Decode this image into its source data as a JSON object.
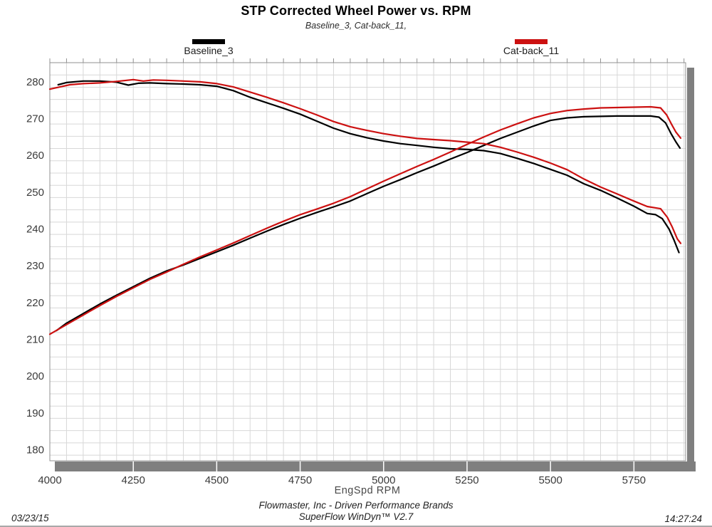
{
  "header": {
    "title": "STP Corrected Wheel Power vs. RPM",
    "subtitle": "Baseline_3, Cat-back_11,"
  },
  "legend": [
    {
      "label": "Baseline_3",
      "color": "#000000"
    },
    {
      "label": "Cat-back_11",
      "color": "#cc1111"
    }
  ],
  "footer": {
    "company_line": "Flowmaster, Inc - Driven Performance Brands",
    "software_line": "SuperFlow WinDyn™ V2.7",
    "date": "03/23/15",
    "time": "14:27:24"
  },
  "chart_data": {
    "type": "line",
    "title": "STP Corrected Wheel Power vs. RPM",
    "subtitle": "Baseline_3, Cat-back_11,",
    "xlabel": "EngSpd  RPM",
    "x_tick_labels": [
      4000,
      4250,
      4500,
      4750,
      5000,
      5250,
      5500,
      5750
    ],
    "y_tick_labels": [
      280,
      270,
      260,
      250,
      240,
      230,
      220,
      210,
      200,
      190,
      180
    ],
    "x_range": [
      4000,
      5905
    ],
    "ylim": [
      177.0,
      285.2
    ],
    "minor_x_step": 50,
    "minor_y_step": 3.3333,
    "grid": "minor-on",
    "legend_position": "top",
    "colors": {
      "grid": "#d8d8d8",
      "border": "#909090",
      "axis_bar": "#7f7f7f",
      "tick_text": "#3a3a3a"
    },
    "series": [
      {
        "name": "Baseline_3",
        "color": "#000000",
        "lines": {
          "upper": [
            [
              4025,
              279.2
            ],
            [
              4050,
              279.8
            ],
            [
              4100,
              280.2
            ],
            [
              4150,
              280.2
            ],
            [
              4200,
              279.9
            ],
            [
              4235,
              279.1
            ],
            [
              4265,
              279.6
            ],
            [
              4300,
              279.7
            ],
            [
              4350,
              279.5
            ],
            [
              4400,
              279.4
            ],
            [
              4450,
              279.2
            ],
            [
              4500,
              278.8
            ],
            [
              4550,
              277.6
            ],
            [
              4600,
              275.8
            ],
            [
              4650,
              274.3
            ],
            [
              4700,
              272.8
            ],
            [
              4750,
              271.2
            ],
            [
              4800,
              269.3
            ],
            [
              4850,
              267.4
            ],
            [
              4900,
              265.9
            ],
            [
              4950,
              264.8
            ],
            [
              5000,
              263.9
            ],
            [
              5050,
              263.2
            ],
            [
              5100,
              262.7
            ],
            [
              5150,
              262.2
            ],
            [
              5200,
              261.8
            ],
            [
              5250,
              261.6
            ],
            [
              5300,
              261.3
            ],
            [
              5350,
              260.5
            ],
            [
              5400,
              259.2
            ],
            [
              5450,
              257.8
            ],
            [
              5500,
              256.2
            ],
            [
              5550,
              254.6
            ],
            [
              5600,
              252.3
            ],
            [
              5650,
              250.5
            ],
            [
              5700,
              248.4
            ],
            [
              5750,
              246.2
            ],
            [
              5790,
              244.2
            ],
            [
              5815,
              243.9
            ],
            [
              5835,
              242.8
            ],
            [
              5855,
              240.0
            ],
            [
              5870,
              237.0
            ],
            [
              5885,
              233.6
            ]
          ],
          "power": [
            [
              4020,
              212.4
            ],
            [
              4050,
              214.4
            ],
            [
              4100,
              217.0
            ],
            [
              4150,
              219.6
            ],
            [
              4200,
              222.0
            ],
            [
              4250,
              224.3
            ],
            [
              4300,
              226.6
            ],
            [
              4350,
              228.6
            ],
            [
              4400,
              230.2
            ],
            [
              4450,
              232.0
            ],
            [
              4500,
              233.8
            ],
            [
              4550,
              235.6
            ],
            [
              4600,
              237.5
            ],
            [
              4650,
              239.4
            ],
            [
              4700,
              241.2
            ],
            [
              4750,
              242.9
            ],
            [
              4800,
              244.5
            ],
            [
              4850,
              246.0
            ],
            [
              4900,
              247.6
            ],
            [
              4950,
              249.6
            ],
            [
              5000,
              251.6
            ],
            [
              5050,
              253.4
            ],
            [
              5100,
              255.3
            ],
            [
              5150,
              257.1
            ],
            [
              5200,
              259.0
            ],
            [
              5250,
              260.8
            ],
            [
              5300,
              262.7
            ],
            [
              5350,
              264.6
            ],
            [
              5400,
              266.3
            ],
            [
              5450,
              268.0
            ],
            [
              5500,
              269.5
            ],
            [
              5550,
              270.2
            ],
            [
              5600,
              270.5
            ],
            [
              5650,
              270.6
            ],
            [
              5700,
              270.7
            ],
            [
              5750,
              270.7
            ],
            [
              5800,
              270.7
            ],
            [
              5825,
              270.4
            ],
            [
              5845,
              268.8
            ],
            [
              5862,
              265.8
            ],
            [
              5875,
              263.8
            ],
            [
              5888,
              262.0
            ]
          ]
        }
      },
      {
        "name": "Cat-back_11",
        "color": "#cc1111",
        "lines": {
          "upper": [
            [
              4000,
              278.0
            ],
            [
              4030,
              278.6
            ],
            [
              4060,
              279.2
            ],
            [
              4100,
              279.5
            ],
            [
              4150,
              279.7
            ],
            [
              4200,
              280.1
            ],
            [
              4250,
              280.6
            ],
            [
              4280,
              280.2
            ],
            [
              4310,
              280.5
            ],
            [
              4350,
              280.4
            ],
            [
              4400,
              280.2
            ],
            [
              4450,
              280.0
            ],
            [
              4500,
              279.5
            ],
            [
              4550,
              278.6
            ],
            [
              4600,
              277.2
            ],
            [
              4650,
              275.8
            ],
            [
              4700,
              274.3
            ],
            [
              4750,
              272.7
            ],
            [
              4800,
              271.0
            ],
            [
              4850,
              269.2
            ],
            [
              4900,
              267.8
            ],
            [
              4950,
              266.8
            ],
            [
              5000,
              265.9
            ],
            [
              5050,
              265.2
            ],
            [
              5100,
              264.6
            ],
            [
              5150,
              264.3
            ],
            [
              5200,
              264.0
            ],
            [
              5250,
              263.6
            ],
            [
              5300,
              263.2
            ],
            [
              5350,
              262.2
            ],
            [
              5400,
              260.9
            ],
            [
              5450,
              259.5
            ],
            [
              5500,
              257.9
            ],
            [
              5550,
              256.1
            ],
            [
              5600,
              253.6
            ],
            [
              5650,
              251.4
            ],
            [
              5700,
              249.5
            ],
            [
              5750,
              247.6
            ],
            [
              5790,
              246.1
            ],
            [
              5830,
              245.5
            ],
            [
              5850,
              243.2
            ],
            [
              5865,
              240.5
            ],
            [
              5880,
              237.3
            ],
            [
              5890,
              236.1
            ]
          ],
          "power": [
            [
              4000,
              211.4
            ],
            [
              4050,
              214.0
            ],
            [
              4100,
              216.6
            ],
            [
              4150,
              219.2
            ],
            [
              4200,
              221.7
            ],
            [
              4250,
              224.0
            ],
            [
              4300,
              226.3
            ],
            [
              4350,
              228.3
            ],
            [
              4400,
              230.4
            ],
            [
              4450,
              232.4
            ],
            [
              4500,
              234.3
            ],
            [
              4550,
              236.2
            ],
            [
              4600,
              238.2
            ],
            [
              4650,
              240.2
            ],
            [
              4700,
              242.1
            ],
            [
              4750,
              243.9
            ],
            [
              4800,
              245.4
            ],
            [
              4850,
              247.0
            ],
            [
              4900,
              248.8
            ],
            [
              4950,
              250.9
            ],
            [
              5000,
              253.0
            ],
            [
              5050,
              255.0
            ],
            [
              5100,
              257.0
            ],
            [
              5150,
              258.9
            ],
            [
              5200,
              260.9
            ],
            [
              5250,
              263.0
            ],
            [
              5300,
              265.0
            ],
            [
              5350,
              266.9
            ],
            [
              5400,
              268.6
            ],
            [
              5450,
              270.2
            ],
            [
              5500,
              271.4
            ],
            [
              5550,
              272.2
            ],
            [
              5600,
              272.6
            ],
            [
              5650,
              272.9
            ],
            [
              5700,
              273.0
            ],
            [
              5750,
              273.1
            ],
            [
              5800,
              273.2
            ],
            [
              5830,
              272.9
            ],
            [
              5848,
              271.0
            ],
            [
              5862,
              268.6
            ],
            [
              5876,
              266.3
            ],
            [
              5890,
              264.7
            ]
          ]
        }
      }
    ]
  }
}
